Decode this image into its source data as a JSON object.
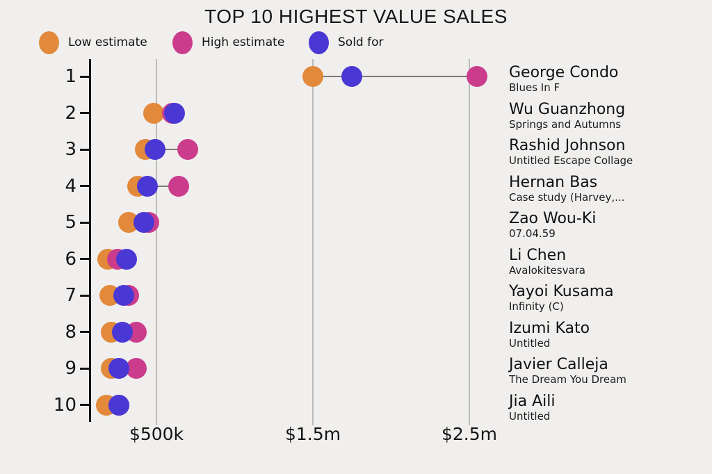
{
  "title": "TOP 10 HIGHEST VALUE SALES",
  "legend": [
    {
      "key": "low",
      "label": "Low estimate"
    },
    {
      "key": "high",
      "label": "High estimate"
    },
    {
      "key": "sold",
      "label": "Sold for"
    }
  ],
  "colors": {
    "low_estimate": "#E2893B",
    "high_estimate": "#CB3D8C",
    "sold_for": "#4A38D5",
    "background": "#F0EFEE",
    "axis": "#141414",
    "gridline": "#BBBBBB",
    "connector": "#7A7A7A",
    "text": "#141414"
  },
  "chart_data": {
    "type": "scatter",
    "variant": "dumbbell-dot-plot",
    "title": "TOP 10 HIGHEST VALUE SALES",
    "legend_entries": [
      "Low estimate",
      "High estimate",
      "Sold for"
    ],
    "legend_position": "top-left",
    "grid": "vertical-only",
    "x_axis": {
      "tick_labels": [
        "$500k",
        "$1.5m",
        "$2.5m"
      ],
      "tick_values": [
        500000,
        1500000,
        2500000
      ],
      "xlim": [
        78000,
        2750000
      ],
      "unit": "USD"
    },
    "y_axis": {
      "tick_labels": [
        "1",
        "2",
        "3",
        "4",
        "5",
        "6",
        "7",
        "8",
        "9",
        "10"
      ]
    },
    "rows": [
      {
        "rank": "1",
        "artist": "George Condo",
        "work": "Blues In F",
        "low": 1500000,
        "high": 2550000,
        "sold": 1750000
      },
      {
        "rank": "2",
        "artist": "Wu Guanzhong",
        "work": "Springs and Autumns",
        "low": 480000,
        "high": 600000,
        "sold": 615000
      },
      {
        "rank": "3",
        "artist": "Rashid Johnson",
        "work": "Untitled Escape Collage",
        "low": 430000,
        "high": 700000,
        "sold": 490000
      },
      {
        "rank": "4",
        "artist": "Hernan Bas",
        "work": "Case study (Harvey,...",
        "low": 380000,
        "high": 640000,
        "sold": 440000
      },
      {
        "rank": "5",
        "artist": "Zao Wou-Ki",
        "work": "07.04.59",
        "low": 320000,
        "high": 450000,
        "sold": 420000
      },
      {
        "rank": "6",
        "artist": "Li Chen",
        "work": "Avalokitesvara",
        "low": 190000,
        "high": 250000,
        "sold": 310000
      },
      {
        "rank": "7",
        "artist": "Yayoi Kusama",
        "work": "Infinity (C)",
        "low": 200000,
        "high": 320000,
        "sold": 290000
      },
      {
        "rank": "8",
        "artist": "Izumi Kato",
        "work": "Untitled",
        "low": 210000,
        "high": 370000,
        "sold": 280000
      },
      {
        "rank": "9",
        "artist": "Javier Calleja",
        "work": "The Dream You Dream",
        "low": 210000,
        "high": 370000,
        "sold": 260000
      },
      {
        "rank": "10",
        "artist": "Jia Aili",
        "work": "Untitled",
        "low": 180000,
        "high": 260000,
        "sold": 260000
      }
    ]
  }
}
